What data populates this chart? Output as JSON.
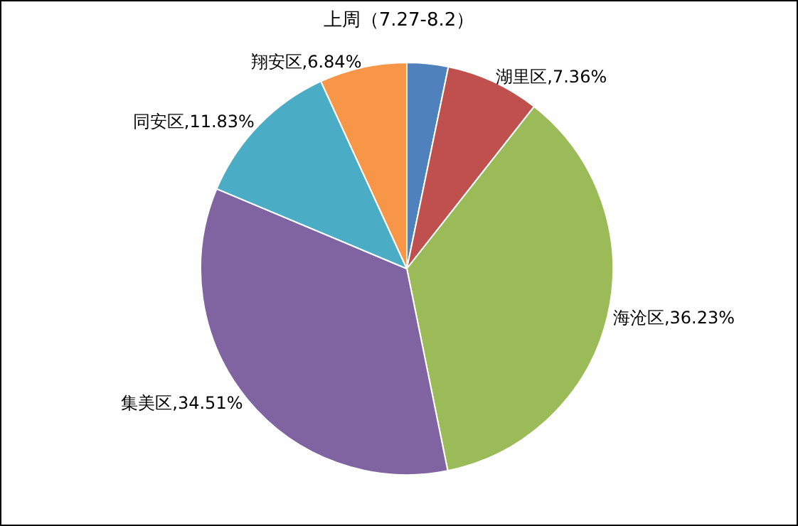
{
  "chart_data": {
    "type": "pie",
    "title": "上周（7.27-8.2）",
    "categories": [
      null,
      "湖里区",
      "海沧区",
      "集美区",
      "同安区",
      "翔安区"
    ],
    "values": [
      3.23,
      7.36,
      36.23,
      34.51,
      11.83,
      6.84
    ],
    "value_labels": [
      null,
      "7.36%",
      "36.23%",
      "34.51%",
      "11.83%",
      "6.84%"
    ],
    "colors": [
      "#4f81bd",
      "#c0504d",
      "#9bbb59",
      "#8064a2",
      "#4bacc6",
      "#f79646"
    ]
  }
}
